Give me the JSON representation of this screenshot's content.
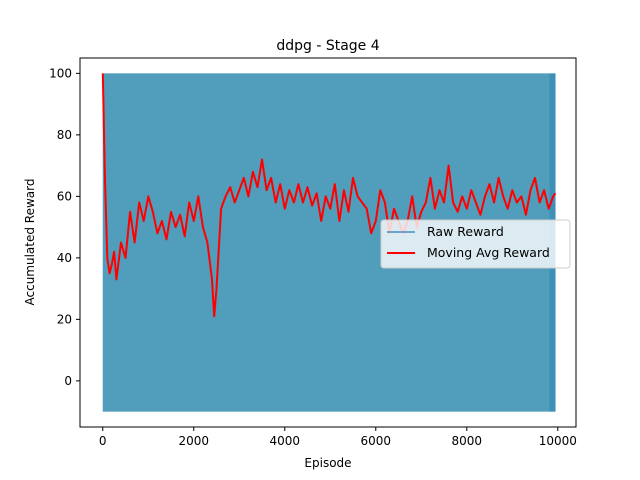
{
  "chart_data": {
    "type": "line",
    "title": "ddpg - Stage 4",
    "xlabel": "Episode",
    "ylabel": "Accumulated Reward",
    "xlim": [
      -500,
      10400
    ],
    "ylim": [
      -15,
      105
    ],
    "xticks": [
      0,
      2000,
      4000,
      6000,
      8000,
      10000
    ],
    "yticks": [
      0,
      20,
      40,
      60,
      80,
      100
    ],
    "grid": false,
    "legend_position": "center-right",
    "series": [
      {
        "name": "Raw Reward",
        "color": "#1f77b4",
        "style": "dense-band",
        "x_range": [
          0,
          9950
        ],
        "y_range": [
          -10,
          100
        ]
      },
      {
        "name": "Moving Avg Reward",
        "color": "#ff0000",
        "x": [
          0,
          50,
          100,
          150,
          200,
          250,
          300,
          400,
          500,
          600,
          700,
          800,
          900,
          1000,
          1100,
          1200,
          1300,
          1400,
          1500,
          1600,
          1700,
          1800,
          1900,
          2000,
          2100,
          2200,
          2300,
          2400,
          2450,
          2500,
          2600,
          2700,
          2800,
          2900,
          3000,
          3100,
          3200,
          3300,
          3400,
          3500,
          3600,
          3700,
          3800,
          3900,
          4000,
          4100,
          4200,
          4300,
          4400,
          4500,
          4600,
          4700,
          4800,
          4900,
          5000,
          5100,
          5200,
          5300,
          5400,
          5500,
          5600,
          5700,
          5800,
          5900,
          6000,
          6100,
          6200,
          6300,
          6400,
          6500,
          6600,
          6700,
          6800,
          6900,
          7000,
          7100,
          7200,
          7300,
          7400,
          7500,
          7600,
          7700,
          7800,
          7900,
          8000,
          8100,
          8200,
          8300,
          8400,
          8500,
          8600,
          8700,
          8800,
          8900,
          9000,
          9100,
          9200,
          9300,
          9400,
          9500,
          9600,
          9700,
          9800,
          9900,
          9950
        ],
        "values": [
          100,
          65,
          40,
          35,
          38,
          42,
          33,
          45,
          40,
          55,
          45,
          58,
          52,
          60,
          55,
          48,
          52,
          46,
          55,
          50,
          54,
          47,
          58,
          52,
          60,
          50,
          45,
          33,
          21,
          30,
          56,
          60,
          63,
          58,
          62,
          66,
          60,
          68,
          63,
          72,
          62,
          66,
          58,
          64,
          56,
          62,
          58,
          64,
          58,
          63,
          57,
          61,
          52,
          60,
          56,
          64,
          52,
          62,
          55,
          66,
          60,
          58,
          56,
          48,
          52,
          62,
          58,
          48,
          56,
          52,
          48,
          52,
          60,
          50,
          55,
          58,
          66,
          56,
          62,
          58,
          70,
          58,
          55,
          60,
          56,
          62,
          58,
          54,
          60,
          64,
          58,
          66,
          60,
          56,
          62,
          58,
          60,
          54,
          62,
          66,
          58,
          62,
          56,
          60,
          61
        ]
      }
    ]
  }
}
